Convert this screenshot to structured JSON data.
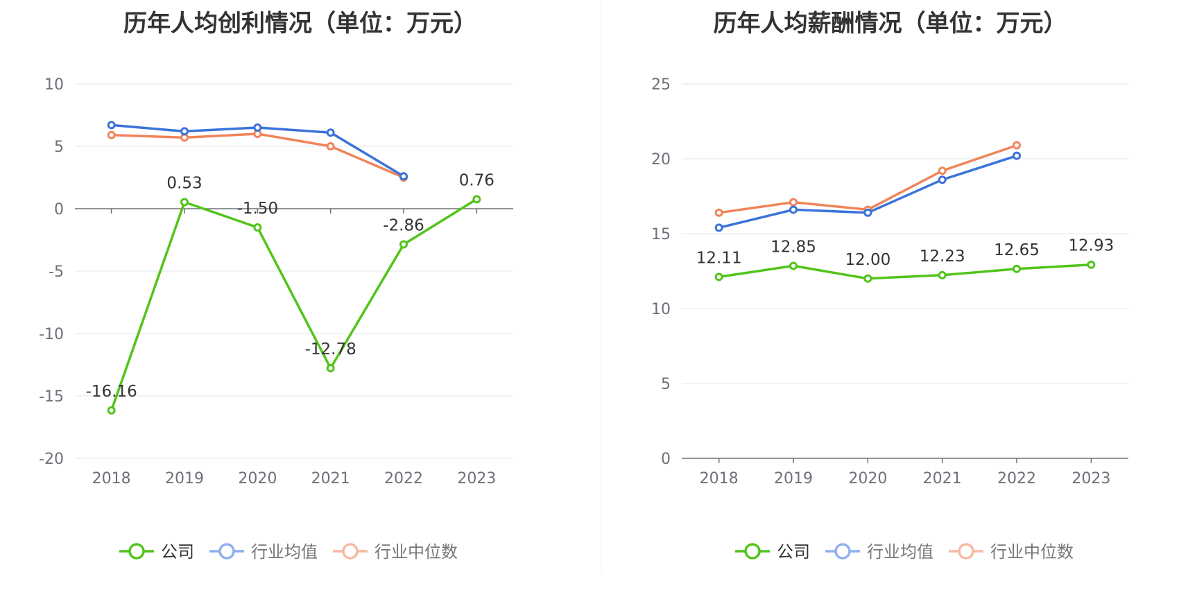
{
  "chart_data": [
    {
      "type": "line",
      "title": "历年人均创利情况（单位：万元）",
      "categories": [
        "2018",
        "2019",
        "2020",
        "2021",
        "2022",
        "2023"
      ],
      "ylim": [
        -20,
        10
      ],
      "yticks": [
        10,
        5,
        0,
        -5,
        -10,
        -15,
        -20
      ],
      "grid": true,
      "legend_position": "bottom",
      "series": [
        {
          "name": "公司",
          "color": "#52c41a",
          "values": [
            -16.16,
            0.53,
            -1.5,
            -12.78,
            -2.86,
            0.76
          ],
          "labels": [
            "-16.16",
            "0.53",
            "-1.50",
            "-12.78",
            "-2.86",
            "0.76"
          ]
        },
        {
          "name": "行业均值",
          "color": "#3a73d9",
          "values": [
            6.7,
            6.2,
            6.5,
            6.1,
            2.6,
            null
          ]
        },
        {
          "name": "行业中位数",
          "color": "#f0845a",
          "values": [
            5.9,
            5.7,
            6.0,
            5.0,
            2.5,
            null
          ]
        }
      ]
    },
    {
      "type": "line",
      "title": "历年人均薪酬情况（单位：万元）",
      "categories": [
        "2018",
        "2019",
        "2020",
        "2021",
        "2022",
        "2023"
      ],
      "ylim": [
        0,
        25
      ],
      "yticks": [
        25,
        20,
        15,
        10,
        5,
        0
      ],
      "grid": true,
      "legend_position": "bottom",
      "series": [
        {
          "name": "公司",
          "color": "#52c41a",
          "values": [
            12.11,
            12.85,
            12.0,
            12.23,
            12.65,
            12.93
          ],
          "labels": [
            "12.11",
            "12.85",
            "12.00",
            "12.23",
            "12.65",
            "12.93"
          ]
        },
        {
          "name": "行业均值",
          "color": "#3a73d9",
          "values": [
            15.4,
            16.6,
            16.4,
            18.6,
            20.2,
            null
          ]
        },
        {
          "name": "行业中位数",
          "color": "#f0845a",
          "values": [
            16.4,
            17.1,
            16.6,
            19.2,
            20.9,
            null
          ]
        }
      ]
    }
  ],
  "legend_colors": {
    "公司": "#52c41a",
    "行业均值": "#8fb0ee",
    "行业中位数": "#f7b9a0"
  }
}
